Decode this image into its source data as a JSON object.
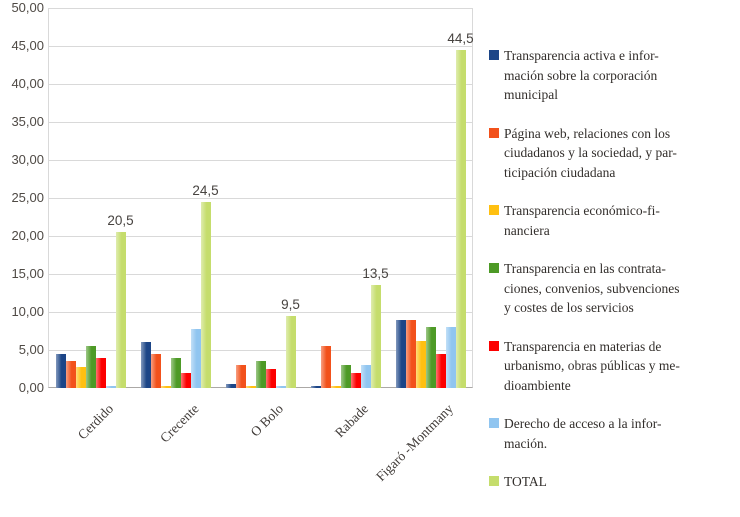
{
  "chart_data": {
    "type": "bar",
    "title": "",
    "xlabel": "",
    "ylabel": "",
    "ylim": [
      0,
      50
    ],
    "ytick_step": 5,
    "ytick_labels": [
      "0,00",
      "5,00",
      "10,00",
      "15,00",
      "20,00",
      "25,00",
      "30,00",
      "35,00",
      "40,00",
      "45,00",
      "50,00"
    ],
    "grid": true,
    "legend_position": "right",
    "decimal_separator": ",",
    "categories": [
      "Cerdido",
      "Crecente",
      "O Bolo",
      "Rabade",
      "Figaró -Montmany"
    ],
    "series": [
      {
        "name": "Transparencia activa e información sobre la corporación municipal",
        "color": "#1c4587",
        "values": [
          4.5,
          6.0,
          0.5,
          0.25,
          9.0
        ],
        "legend_lines": [
          "Transparencia activa e infor-",
          "mación sobre la corporación",
          "municipal"
        ]
      },
      {
        "name": "Página web, relaciones con los ciudadanos y la sociedad, y participación ciudadana",
        "color": "#f2511b",
        "values": [
          3.5,
          4.5,
          3.0,
          5.5,
          9.0
        ],
        "legend_lines": [
          "Página web, relaciones con los",
          "ciudadanos y la sociedad, y par-",
          "ticipación ciudadana"
        ]
      },
      {
        "name": "Transparencia económico-financiera",
        "color": "#ffc011",
        "values": [
          2.75,
          0.25,
          0.25,
          0.25,
          6.25
        ],
        "legend_lines": [
          "Transparencia económico-fi-",
          "nanciera"
        ]
      },
      {
        "name": "Transparencia en las contrataciones, convenios, subvenciones y costes de los servicios",
        "color": "#4d9a26",
        "values": [
          5.5,
          4.0,
          3.5,
          3.0,
          8.0
        ],
        "legend_lines": [
          "Transparencia en las contrata-",
          "ciones, convenios, subvenciones",
          "y costes de los servicios"
        ]
      },
      {
        "name": "Transparencia en materias de urbanismo, obras públicas y medioambiente",
        "color": "#fc0000",
        "values": [
          4.0,
          2.0,
          2.5,
          2.0,
          4.5
        ],
        "legend_lines": [
          "Transparencia en materias de",
          "urbanismo, obras públicas y me-",
          "dioambiente"
        ]
      },
      {
        "name": "Derecho de acceso a la información.",
        "color": "#90c5f0",
        "values": [
          0.25,
          7.75,
          0.25,
          3.0,
          8.0
        ],
        "legend_lines": [
          "Derecho de acceso a la infor-",
          "mación."
        ]
      },
      {
        "name": "TOTAL",
        "color": "#c5dd6c",
        "values": [
          20.5,
          24.5,
          9.5,
          13.5,
          44.5
        ],
        "legend_lines": [
          "TOTAL"
        ]
      }
    ],
    "total_data_labels": [
      "20,5",
      "24,5",
      "9,5",
      "13,5",
      "44,5"
    ]
  },
  "colors": {
    "gridline": "#d9d9d9",
    "axis_line": "#aba8a6",
    "axis_text": "#4f4a45",
    "label_text": "#474340",
    "legend_text": "#322e2b"
  }
}
